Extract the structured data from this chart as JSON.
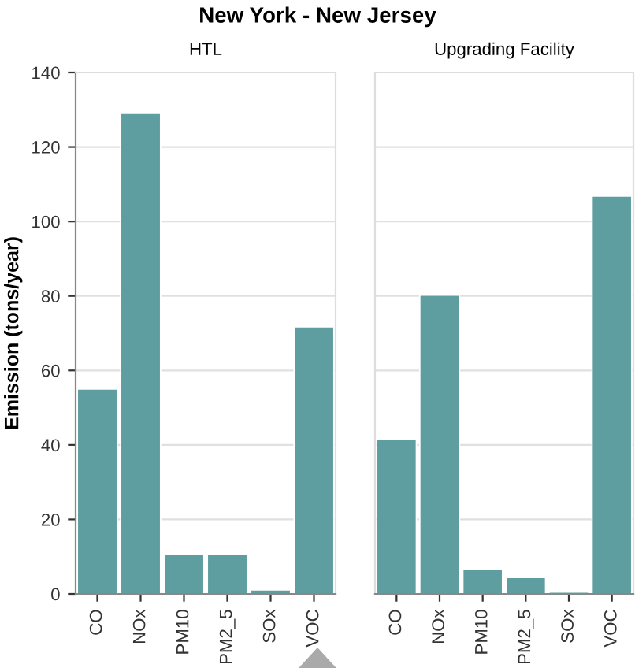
{
  "chart_data": [
    {
      "type": "bar",
      "title": "New York - New Jersey",
      "subtitle": "HTL",
      "ylabel": "Emission (tons/year)",
      "categories": [
        "CO",
        "NOx",
        "PM10",
        "PM2_5",
        "SOx",
        "VOC"
      ],
      "values": [
        55,
        129,
        10.7,
        10.7,
        1.1,
        71.7
      ],
      "color": "#5f9ea0",
      "ylim": [
        0,
        140
      ],
      "yticks": [
        0,
        20,
        40,
        60,
        80,
        100,
        120,
        140
      ],
      "grid": "y"
    },
    {
      "type": "bar",
      "subtitle": "Upgrading Facility",
      "categories": [
        "CO",
        "NOx",
        "PM10",
        "PM2_5",
        "SOx",
        "VOC"
      ],
      "values": [
        41.6,
        80.2,
        6.6,
        4.4,
        0.5,
        106.8
      ],
      "color": "#5f9ea0",
      "ylim": [
        0,
        140
      ],
      "yticks": [
        0,
        20,
        40,
        60,
        80,
        100,
        120,
        140
      ],
      "grid": "y",
      "tick_labels": "x"
    }
  ]
}
